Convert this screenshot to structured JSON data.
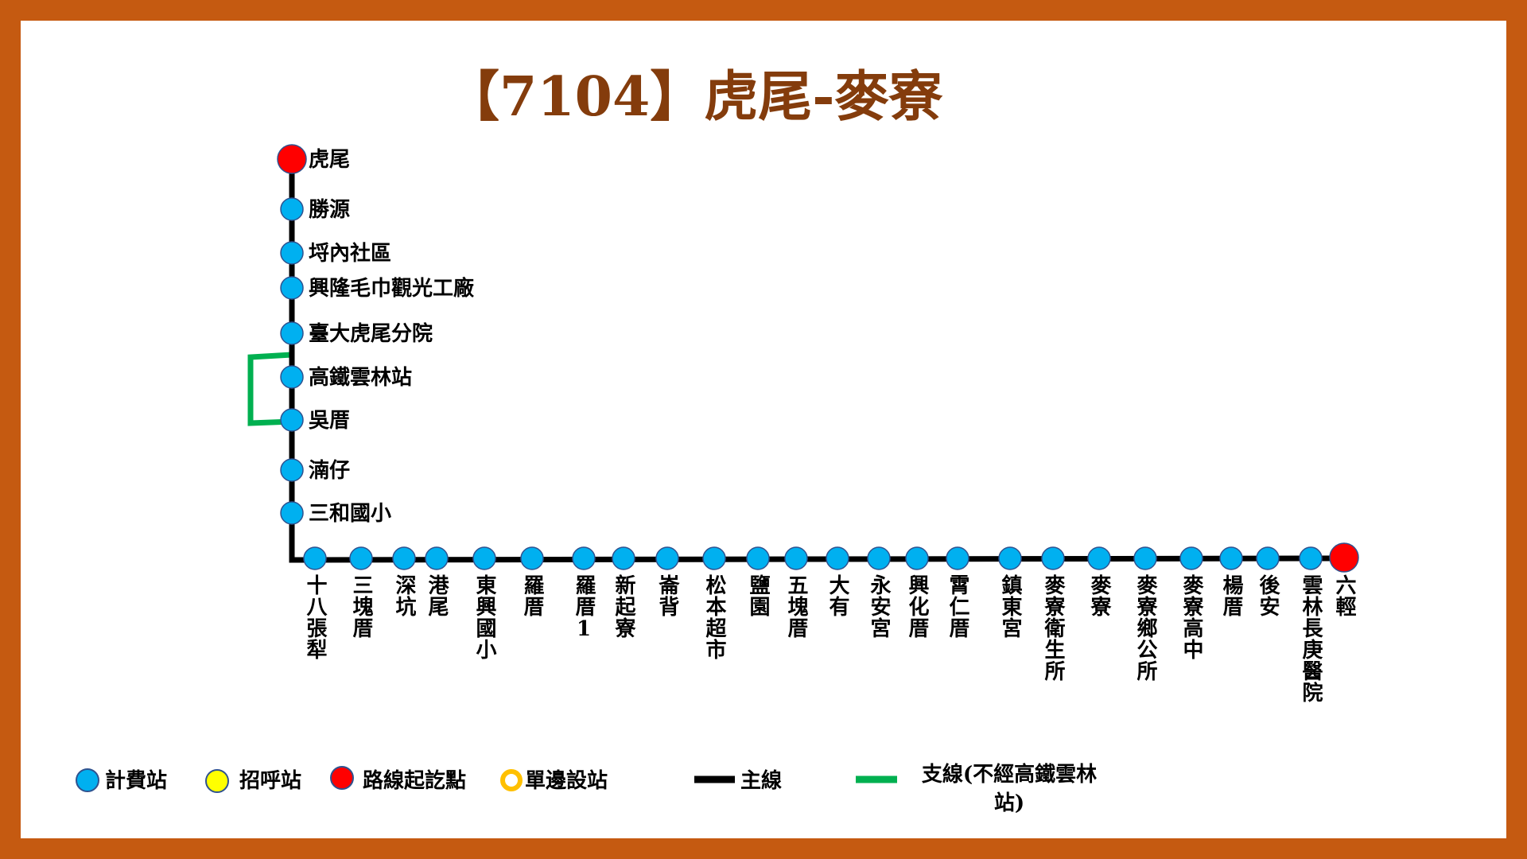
{
  "title": "【7104】虎尾-麥寮",
  "route": {
    "vertical_stops": [
      {
        "name": "虎尾",
        "type": "terminal"
      },
      {
        "name": "勝源",
        "type": "fare"
      },
      {
        "name": "埒內社區",
        "type": "fare"
      },
      {
        "name": "興隆毛巾觀光工廠",
        "type": "fare"
      },
      {
        "name": "臺大虎尾分院",
        "type": "fare"
      },
      {
        "name": "高鐵雲林站",
        "type": "fare"
      },
      {
        "name": "吳厝",
        "type": "fare"
      },
      {
        "name": "湳仔",
        "type": "fare"
      },
      {
        "name": "三和國小",
        "type": "fare"
      }
    ],
    "horizontal_stops": [
      {
        "name": "十八張犁",
        "type": "fare"
      },
      {
        "name": "三塊厝",
        "type": "fare"
      },
      {
        "name": "深坑",
        "type": "fare"
      },
      {
        "name": "港尾",
        "type": "fare"
      },
      {
        "name": "東興國小",
        "type": "fare"
      },
      {
        "name": "羅厝",
        "type": "fare"
      },
      {
        "name": "羅厝1",
        "type": "fare"
      },
      {
        "name": "新起寮",
        "type": "fare"
      },
      {
        "name": "崙背",
        "type": "fare"
      },
      {
        "name": "松本超市",
        "type": "fare"
      },
      {
        "name": "鹽園",
        "type": "fare"
      },
      {
        "name": "五塊厝",
        "type": "fare"
      },
      {
        "name": "大有",
        "type": "fare"
      },
      {
        "name": "永安宮",
        "type": "fare"
      },
      {
        "name": "興化厝",
        "type": "fare"
      },
      {
        "name": "霄仁厝",
        "type": "fare"
      },
      {
        "name": "鎮東宮",
        "type": "fare"
      },
      {
        "name": "麥寮衛生所",
        "type": "fare"
      },
      {
        "name": "麥寮",
        "type": "fare"
      },
      {
        "name": "麥寮鄉公所",
        "type": "fare"
      },
      {
        "name": "麥寮高中",
        "type": "fare"
      },
      {
        "name": "楊厝",
        "type": "fare"
      },
      {
        "name": "後安",
        "type": "fare"
      },
      {
        "name": "雲林長庚醫院",
        "type": "fare"
      },
      {
        "name": "六輕",
        "type": "terminal"
      }
    ],
    "branch_bypass": [
      "高鐵雲林站"
    ]
  },
  "legend": {
    "fare_stop": "計費站",
    "flag_stop": "招呼站",
    "terminal": "路線起訖點",
    "one_side_stop": "單邊設站",
    "main_line": "主線",
    "branch_line": "支線(不經高鐵雲林站)"
  },
  "colors": {
    "border": "#c55a11",
    "title": "#843c0c",
    "fare_stop": "#00b0f0",
    "flag_stop": "#ffff00",
    "terminal": "#ff0000",
    "one_side_stop": "#ffc000",
    "main_line": "#000000",
    "branch_line": "#00b050"
  }
}
